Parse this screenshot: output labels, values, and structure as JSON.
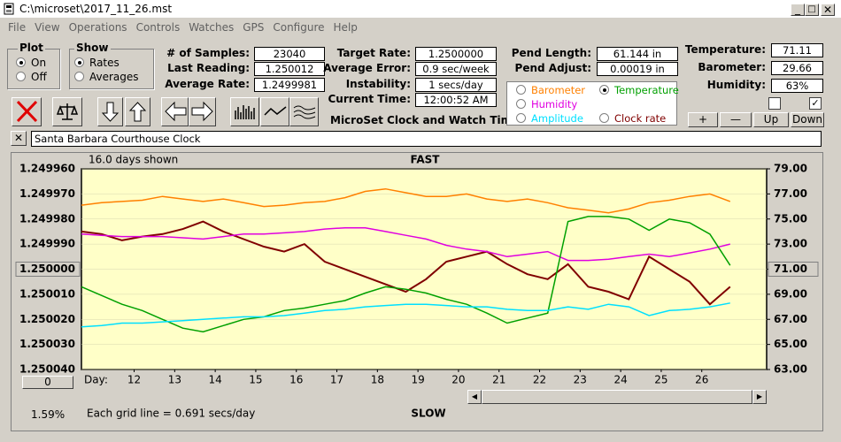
{
  "window": {
    "title": "C:\\microset\\2017_11_26.mst"
  },
  "menu": [
    "File",
    "View",
    "Operations",
    "Controls",
    "Watches",
    "GPS",
    "Configure",
    "Help"
  ],
  "plot": {
    "title": "Plot",
    "options": [
      "On",
      "Off"
    ],
    "selected": 0
  },
  "show": {
    "title": "Show",
    "options": [
      "Rates",
      "Averages"
    ],
    "selected": 0
  },
  "fields": [
    [
      {
        "label": "# of Samples:",
        "value": "23040"
      },
      {
        "label": "Last Reading:",
        "value": "1.250012"
      },
      {
        "label": "Average Rate:",
        "value": "1.2499981"
      }
    ],
    [
      {
        "label": "Target Rate:",
        "value": "1.2500000"
      },
      {
        "label": "Average Error:",
        "value": "0.9 sec/week"
      },
      {
        "label": "Instability:",
        "value": "1 secs/day"
      },
      {
        "label": "Current Time:",
        "value": "12:00:52 AM"
      }
    ],
    [
      {
        "label": "Pend Length:",
        "value": "61.144 in"
      },
      {
        "label": "Pend Adjust:",
        "value": "0.00019 in"
      }
    ],
    [
      {
        "label": "Temperature:",
        "value": "71.11"
      },
      {
        "label": "Barometer:",
        "value": "29.66"
      },
      {
        "label": "Humidity:",
        "value": "63%"
      }
    ]
  ],
  "buttons": [
    "+",
    "—",
    "Up",
    "Down"
  ],
  "checkboxes": [
    false,
    true
  ],
  "app_name": "MicroSet Clock and Watch Timer",
  "clock_name": "Santa Barbara Courthouse Clock",
  "status": {
    "percent": "1.59%",
    "offset": "0"
  },
  "chart_data": {
    "type": "line",
    "title": "FAST",
    "subtitle": "16.0 days shown",
    "bottom_title": "SLOW",
    "note": "Each grid line = 0.691 secs/day",
    "xlabel": "Day:",
    "x": [
      10.7,
      11.2,
      11.7,
      12.2,
      12.7,
      13.2,
      13.7,
      14.2,
      14.7,
      15.2,
      15.7,
      16.2,
      16.7,
      17.2,
      17.7,
      18.2,
      18.7,
      19.2,
      19.7,
      20.2,
      20.7,
      21.2,
      21.7,
      22.2,
      22.7,
      23.2,
      23.7,
      24.2,
      24.7,
      25.2,
      25.7,
      26.2,
      26.7
    ],
    "xlim": [
      10.7,
      27.6
    ],
    "xticks": [
      12,
      13,
      14,
      15,
      16,
      17,
      18,
      19,
      20,
      21,
      22,
      23,
      24,
      25,
      26
    ],
    "ylim": [
      1.25004,
      1.24996
    ],
    "yticks": [
      {
        "value": 1.24996,
        "label": "1.249960"
      },
      {
        "value": 1.24997,
        "label": "1.249970"
      },
      {
        "value": 1.24998,
        "label": "1.249980"
      },
      {
        "value": 1.24999,
        "label": "1.249990"
      },
      {
        "value": 1.25,
        "label": "1.250000"
      },
      {
        "value": 1.25001,
        "label": "1.250010"
      },
      {
        "value": 1.25002,
        "label": "1.250020"
      },
      {
        "value": 1.25003,
        "label": "1.250030"
      },
      {
        "value": 1.25004,
        "label": "1.250040"
      }
    ],
    "y2lim": [
      63,
      79
    ],
    "y2ticks": [
      {
        "value": 79,
        "label": "79.00"
      },
      {
        "value": 77,
        "label": "77.00"
      },
      {
        "value": 75,
        "label": "75.00"
      },
      {
        "value": 73,
        "label": "73.00"
      },
      {
        "value": 71,
        "label": "71.00"
      },
      {
        "value": 69,
        "label": "69.00"
      },
      {
        "value": 67,
        "label": "67.00"
      },
      {
        "value": 65,
        "label": "65.00"
      },
      {
        "value": 63,
        "label": "63.00"
      }
    ],
    "grid": true,
    "series": [
      {
        "name": "Clock rate",
        "color": "#800000",
        "values": [
          1.249985,
          1.249986,
          1.2499885,
          1.249987,
          1.249986,
          1.249984,
          1.249981,
          1.249985,
          1.249988,
          1.249991,
          1.249993,
          1.24999,
          1.249997,
          1.25,
          1.250003,
          1.250006,
          1.250009,
          1.250004,
          1.249997,
          1.249995,
          1.249993,
          1.249998,
          1.250002,
          1.250004,
          1.249998,
          1.250007,
          1.250009,
          1.250012,
          1.249995,
          1.25,
          1.250005,
          1.250014,
          1.250007
        ]
      },
      {
        "name": "Barometer",
        "color": "#ff8000",
        "axis": "y2",
        "values": [
          76.1,
          76.3,
          76.4,
          76.5,
          76.8,
          76.6,
          76.4,
          76.6,
          76.3,
          76.0,
          76.1,
          76.3,
          76.4,
          76.7,
          77.2,
          77.4,
          77.1,
          76.8,
          76.8,
          77.0,
          76.6,
          76.4,
          76.6,
          76.3,
          75.9,
          75.7,
          75.5,
          75.8,
          76.3,
          76.5,
          76.8,
          77.0,
          76.4
        ]
      },
      {
        "name": "Humidity",
        "color": "#e000e0",
        "axis": "y2",
        "values": [
          73.8,
          73.7,
          73.6,
          73.6,
          73.6,
          73.5,
          73.4,
          73.6,
          73.8,
          73.8,
          73.9,
          74.0,
          74.2,
          74.3,
          74.3,
          74.0,
          73.7,
          73.4,
          72.9,
          72.6,
          72.4,
          72.0,
          72.2,
          72.4,
          71.7,
          71.7,
          71.8,
          72.0,
          72.2,
          72.0,
          72.3,
          72.6,
          73.0
        ]
      },
      {
        "name": "Temperature",
        "color": "#00a000",
        "axis": "y2",
        "checked": true,
        "values": [
          69.6,
          68.9,
          68.2,
          67.7,
          67.0,
          66.3,
          66.0,
          66.5,
          67.0,
          67.2,
          67.7,
          67.9,
          68.2,
          68.5,
          69.1,
          69.6,
          69.4,
          69.1,
          68.6,
          68.2,
          67.5,
          66.7,
          67.1,
          67.5,
          74.8,
          75.2,
          75.2,
          75.0,
          74.1,
          75.0,
          74.7,
          73.8,
          71.3
        ]
      },
      {
        "name": "Amplitude",
        "color": "#00e0ff",
        "axis": "y2",
        "values": [
          66.4,
          66.5,
          66.7,
          66.7,
          66.8,
          66.9,
          67.0,
          67.1,
          67.2,
          67.2,
          67.3,
          67.5,
          67.7,
          67.8,
          68.0,
          68.1,
          68.2,
          68.2,
          68.1,
          68.0,
          68.0,
          67.8,
          67.7,
          67.7,
          68.0,
          67.8,
          68.2,
          68.0,
          67.3,
          67.7,
          67.8,
          68.0,
          68.3
        ]
      }
    ]
  }
}
